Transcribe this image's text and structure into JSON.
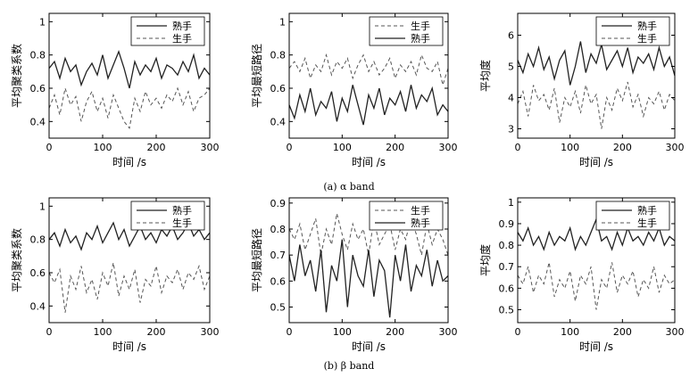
{
  "figure": {
    "caption_a": "(a) α band",
    "caption_b": "(b) β band"
  },
  "chart_data": [
    {
      "type": "line",
      "band": "α",
      "xlabel": "时间 /s",
      "ylabel": "平均聚类系数",
      "xlim": [
        0,
        300
      ],
      "ylim": [
        0.3,
        1.05
      ],
      "xticks": [
        0,
        100,
        200,
        300
      ],
      "yticks": [
        0.4,
        0.6,
        0.8,
        1
      ],
      "legend": "top-right",
      "x": [
        0,
        10,
        20,
        30,
        40,
        50,
        60,
        70,
        80,
        90,
        100,
        110,
        120,
        130,
        140,
        150,
        160,
        170,
        180,
        190,
        200,
        210,
        220,
        230,
        240,
        250,
        260,
        270,
        280,
        290,
        300
      ],
      "series": [
        {
          "name": "熟手",
          "style": "solid",
          "values": [
            0.72,
            0.76,
            0.66,
            0.78,
            0.7,
            0.74,
            0.62,
            0.7,
            0.75,
            0.68,
            0.8,
            0.66,
            0.74,
            0.82,
            0.72,
            0.6,
            0.76,
            0.68,
            0.74,
            0.7,
            0.78,
            0.66,
            0.74,
            0.72,
            0.68,
            0.76,
            0.7,
            0.8,
            0.66,
            0.72,
            0.68
          ]
        },
        {
          "name": "生手",
          "style": "dashed",
          "values": [
            0.48,
            0.56,
            0.44,
            0.6,
            0.5,
            0.55,
            0.4,
            0.52,
            0.58,
            0.46,
            0.54,
            0.42,
            0.56,
            0.48,
            0.4,
            0.36,
            0.54,
            0.46,
            0.58,
            0.5,
            0.54,
            0.48,
            0.56,
            0.52,
            0.6,
            0.5,
            0.58,
            0.46,
            0.54,
            0.56,
            0.6
          ]
        }
      ]
    },
    {
      "type": "line",
      "band": "α",
      "xlabel": "时间 /s",
      "ylabel": "平均最短路径",
      "xlim": [
        0,
        300
      ],
      "ylim": [
        0.3,
        1.05
      ],
      "xticks": [
        0,
        100,
        200,
        300
      ],
      "yticks": [
        0.4,
        0.6,
        0.8,
        1
      ],
      "legend": "top-right",
      "x": [
        0,
        10,
        20,
        30,
        40,
        50,
        60,
        70,
        80,
        90,
        100,
        110,
        120,
        130,
        140,
        150,
        160,
        170,
        180,
        190,
        200,
        210,
        220,
        230,
        240,
        250,
        260,
        270,
        280,
        290,
        300
      ],
      "series": [
        {
          "name": "生手",
          "style": "dashed",
          "values": [
            0.72,
            0.76,
            0.7,
            0.78,
            0.66,
            0.74,
            0.7,
            0.8,
            0.68,
            0.76,
            0.72,
            0.78,
            0.66,
            0.74,
            0.8,
            0.7,
            0.76,
            0.68,
            0.72,
            0.78,
            0.66,
            0.74,
            0.7,
            0.76,
            0.68,
            0.8,
            0.72,
            0.7,
            0.76,
            0.62,
            0.72
          ]
        },
        {
          "name": "熟手",
          "style": "solid",
          "values": [
            0.5,
            0.42,
            0.56,
            0.46,
            0.6,
            0.44,
            0.52,
            0.48,
            0.58,
            0.4,
            0.54,
            0.46,
            0.62,
            0.5,
            0.38,
            0.56,
            0.48,
            0.6,
            0.44,
            0.54,
            0.5,
            0.58,
            0.46,
            0.62,
            0.48,
            0.56,
            0.52,
            0.6,
            0.44,
            0.5,
            0.46
          ]
        }
      ]
    },
    {
      "type": "line",
      "band": "α",
      "xlabel": "时间 /s",
      "ylabel": "平均度",
      "xlim": [
        0,
        300
      ],
      "ylim": [
        2.7,
        6.7
      ],
      "xticks": [
        0,
        100,
        200,
        300
      ],
      "yticks": [
        3,
        4,
        5,
        6
      ],
      "legend": "top-right",
      "x": [
        0,
        10,
        20,
        30,
        40,
        50,
        60,
        70,
        80,
        90,
        100,
        110,
        120,
        130,
        140,
        150,
        160,
        170,
        180,
        190,
        200,
        210,
        220,
        230,
        240,
        250,
        260,
        270,
        280,
        290,
        300
      ],
      "series": [
        {
          "name": "熟手",
          "style": "solid",
          "values": [
            5.2,
            4.8,
            5.4,
            5.0,
            5.6,
            4.9,
            5.3,
            4.6,
            5.2,
            5.5,
            4.4,
            5.0,
            5.8,
            4.8,
            5.4,
            5.1,
            5.7,
            4.9,
            5.2,
            5.5,
            5.0,
            5.6,
            4.8,
            5.3,
            5.1,
            5.4,
            4.9,
            5.6,
            5.0,
            5.3,
            4.7
          ]
        },
        {
          "name": "生手",
          "style": "dashed",
          "values": [
            3.8,
            4.2,
            3.4,
            4.4,
            3.9,
            4.1,
            3.6,
            4.3,
            3.2,
            4.0,
            3.7,
            4.2,
            3.5,
            4.4,
            3.8,
            4.1,
            3.0,
            4.0,
            3.6,
            4.3,
            3.9,
            4.5,
            3.7,
            4.1,
            3.4,
            4.0,
            3.8,
            4.2,
            3.6,
            4.1,
            3.9
          ]
        }
      ]
    },
    {
      "type": "line",
      "band": "β",
      "xlabel": "时间 /s",
      "ylabel": "平均聚类系数",
      "xlim": [
        0,
        300
      ],
      "ylim": [
        0.3,
        1.05
      ],
      "xticks": [
        0,
        100,
        200,
        300
      ],
      "yticks": [
        0.4,
        0.6,
        0.8,
        1
      ],
      "legend": "top-right",
      "x": [
        0,
        10,
        20,
        30,
        40,
        50,
        60,
        70,
        80,
        90,
        100,
        110,
        120,
        130,
        140,
        150,
        160,
        170,
        180,
        190,
        200,
        210,
        220,
        230,
        240,
        250,
        260,
        270,
        280,
        290,
        300
      ],
      "series": [
        {
          "name": "熟手",
          "style": "solid",
          "values": [
            0.8,
            0.84,
            0.76,
            0.86,
            0.78,
            0.82,
            0.74,
            0.84,
            0.8,
            0.88,
            0.78,
            0.84,
            0.9,
            0.8,
            0.86,
            0.76,
            0.82,
            0.88,
            0.8,
            0.84,
            0.78,
            0.86,
            0.82,
            0.88,
            0.8,
            0.84,
            0.9,
            0.82,
            0.86,
            0.8,
            0.84
          ]
        },
        {
          "name": "生手",
          "style": "dashed",
          "values": [
            0.6,
            0.54,
            0.62,
            0.36,
            0.58,
            0.5,
            0.64,
            0.48,
            0.56,
            0.44,
            0.6,
            0.52,
            0.66,
            0.46,
            0.58,
            0.5,
            0.62,
            0.42,
            0.56,
            0.52,
            0.64,
            0.48,
            0.58,
            0.54,
            0.62,
            0.5,
            0.6,
            0.56,
            0.64,
            0.5,
            0.58
          ]
        }
      ]
    },
    {
      "type": "line",
      "band": "β",
      "xlabel": "时间 /s",
      "ylabel": "平均最短路径",
      "xlim": [
        0,
        300
      ],
      "ylim": [
        0.44,
        0.92
      ],
      "xticks": [
        0,
        100,
        200,
        300
      ],
      "yticks": [
        0.5,
        0.6,
        0.7,
        0.8,
        0.9
      ],
      "legend": "top-right",
      "x": [
        0,
        10,
        20,
        30,
        40,
        50,
        60,
        70,
        80,
        90,
        100,
        110,
        120,
        130,
        140,
        150,
        160,
        170,
        180,
        190,
        200,
        210,
        220,
        230,
        240,
        250,
        260,
        270,
        280,
        290,
        300
      ],
      "series": [
        {
          "name": "生手",
          "style": "dashed",
          "values": [
            0.8,
            0.76,
            0.82,
            0.72,
            0.78,
            0.84,
            0.7,
            0.8,
            0.74,
            0.86,
            0.78,
            0.72,
            0.82,
            0.76,
            0.8,
            0.7,
            0.84,
            0.74,
            0.78,
            0.82,
            0.72,
            0.8,
            0.76,
            0.84,
            0.78,
            0.7,
            0.82,
            0.74,
            0.8,
            0.76,
            0.7
          ]
        },
        {
          "name": "熟手",
          "style": "solid",
          "values": [
            0.7,
            0.6,
            0.74,
            0.62,
            0.68,
            0.56,
            0.72,
            0.48,
            0.66,
            0.6,
            0.76,
            0.5,
            0.7,
            0.62,
            0.58,
            0.72,
            0.54,
            0.68,
            0.64,
            0.46,
            0.7,
            0.6,
            0.74,
            0.56,
            0.66,
            0.62,
            0.72,
            0.58,
            0.68,
            0.6,
            0.62
          ]
        }
      ]
    },
    {
      "type": "line",
      "band": "β",
      "xlabel": "时间 /s",
      "ylabel": "平均度",
      "xlim": [
        0,
        300
      ],
      "ylim": [
        0.44,
        1.02
      ],
      "xticks": [
        0,
        100,
        200,
        300
      ],
      "yticks": [
        0.5,
        0.6,
        0.7,
        0.8,
        0.9,
        1
      ],
      "legend": "top-right",
      "x": [
        0,
        10,
        20,
        30,
        40,
        50,
        60,
        70,
        80,
        90,
        100,
        110,
        120,
        130,
        140,
        150,
        160,
        170,
        180,
        190,
        200,
        210,
        220,
        230,
        240,
        250,
        260,
        270,
        280,
        290,
        300
      ],
      "series": [
        {
          "name": "熟手",
          "style": "solid",
          "values": [
            0.86,
            0.82,
            0.88,
            0.8,
            0.84,
            0.78,
            0.86,
            0.8,
            0.84,
            0.82,
            0.88,
            0.78,
            0.84,
            0.8,
            0.86,
            0.92,
            0.82,
            0.84,
            0.78,
            0.86,
            0.8,
            0.88,
            0.82,
            0.84,
            0.8,
            0.86,
            0.82,
            0.88,
            0.8,
            0.84,
            0.82
          ]
        },
        {
          "name": "生手",
          "style": "dashed",
          "values": [
            0.66,
            0.62,
            0.7,
            0.58,
            0.66,
            0.62,
            0.72,
            0.56,
            0.64,
            0.6,
            0.68,
            0.54,
            0.66,
            0.62,
            0.7,
            0.5,
            0.64,
            0.6,
            0.72,
            0.58,
            0.66,
            0.62,
            0.68,
            0.56,
            0.64,
            0.6,
            0.7,
            0.58,
            0.66,
            0.62,
            0.64
          ]
        }
      ]
    }
  ]
}
